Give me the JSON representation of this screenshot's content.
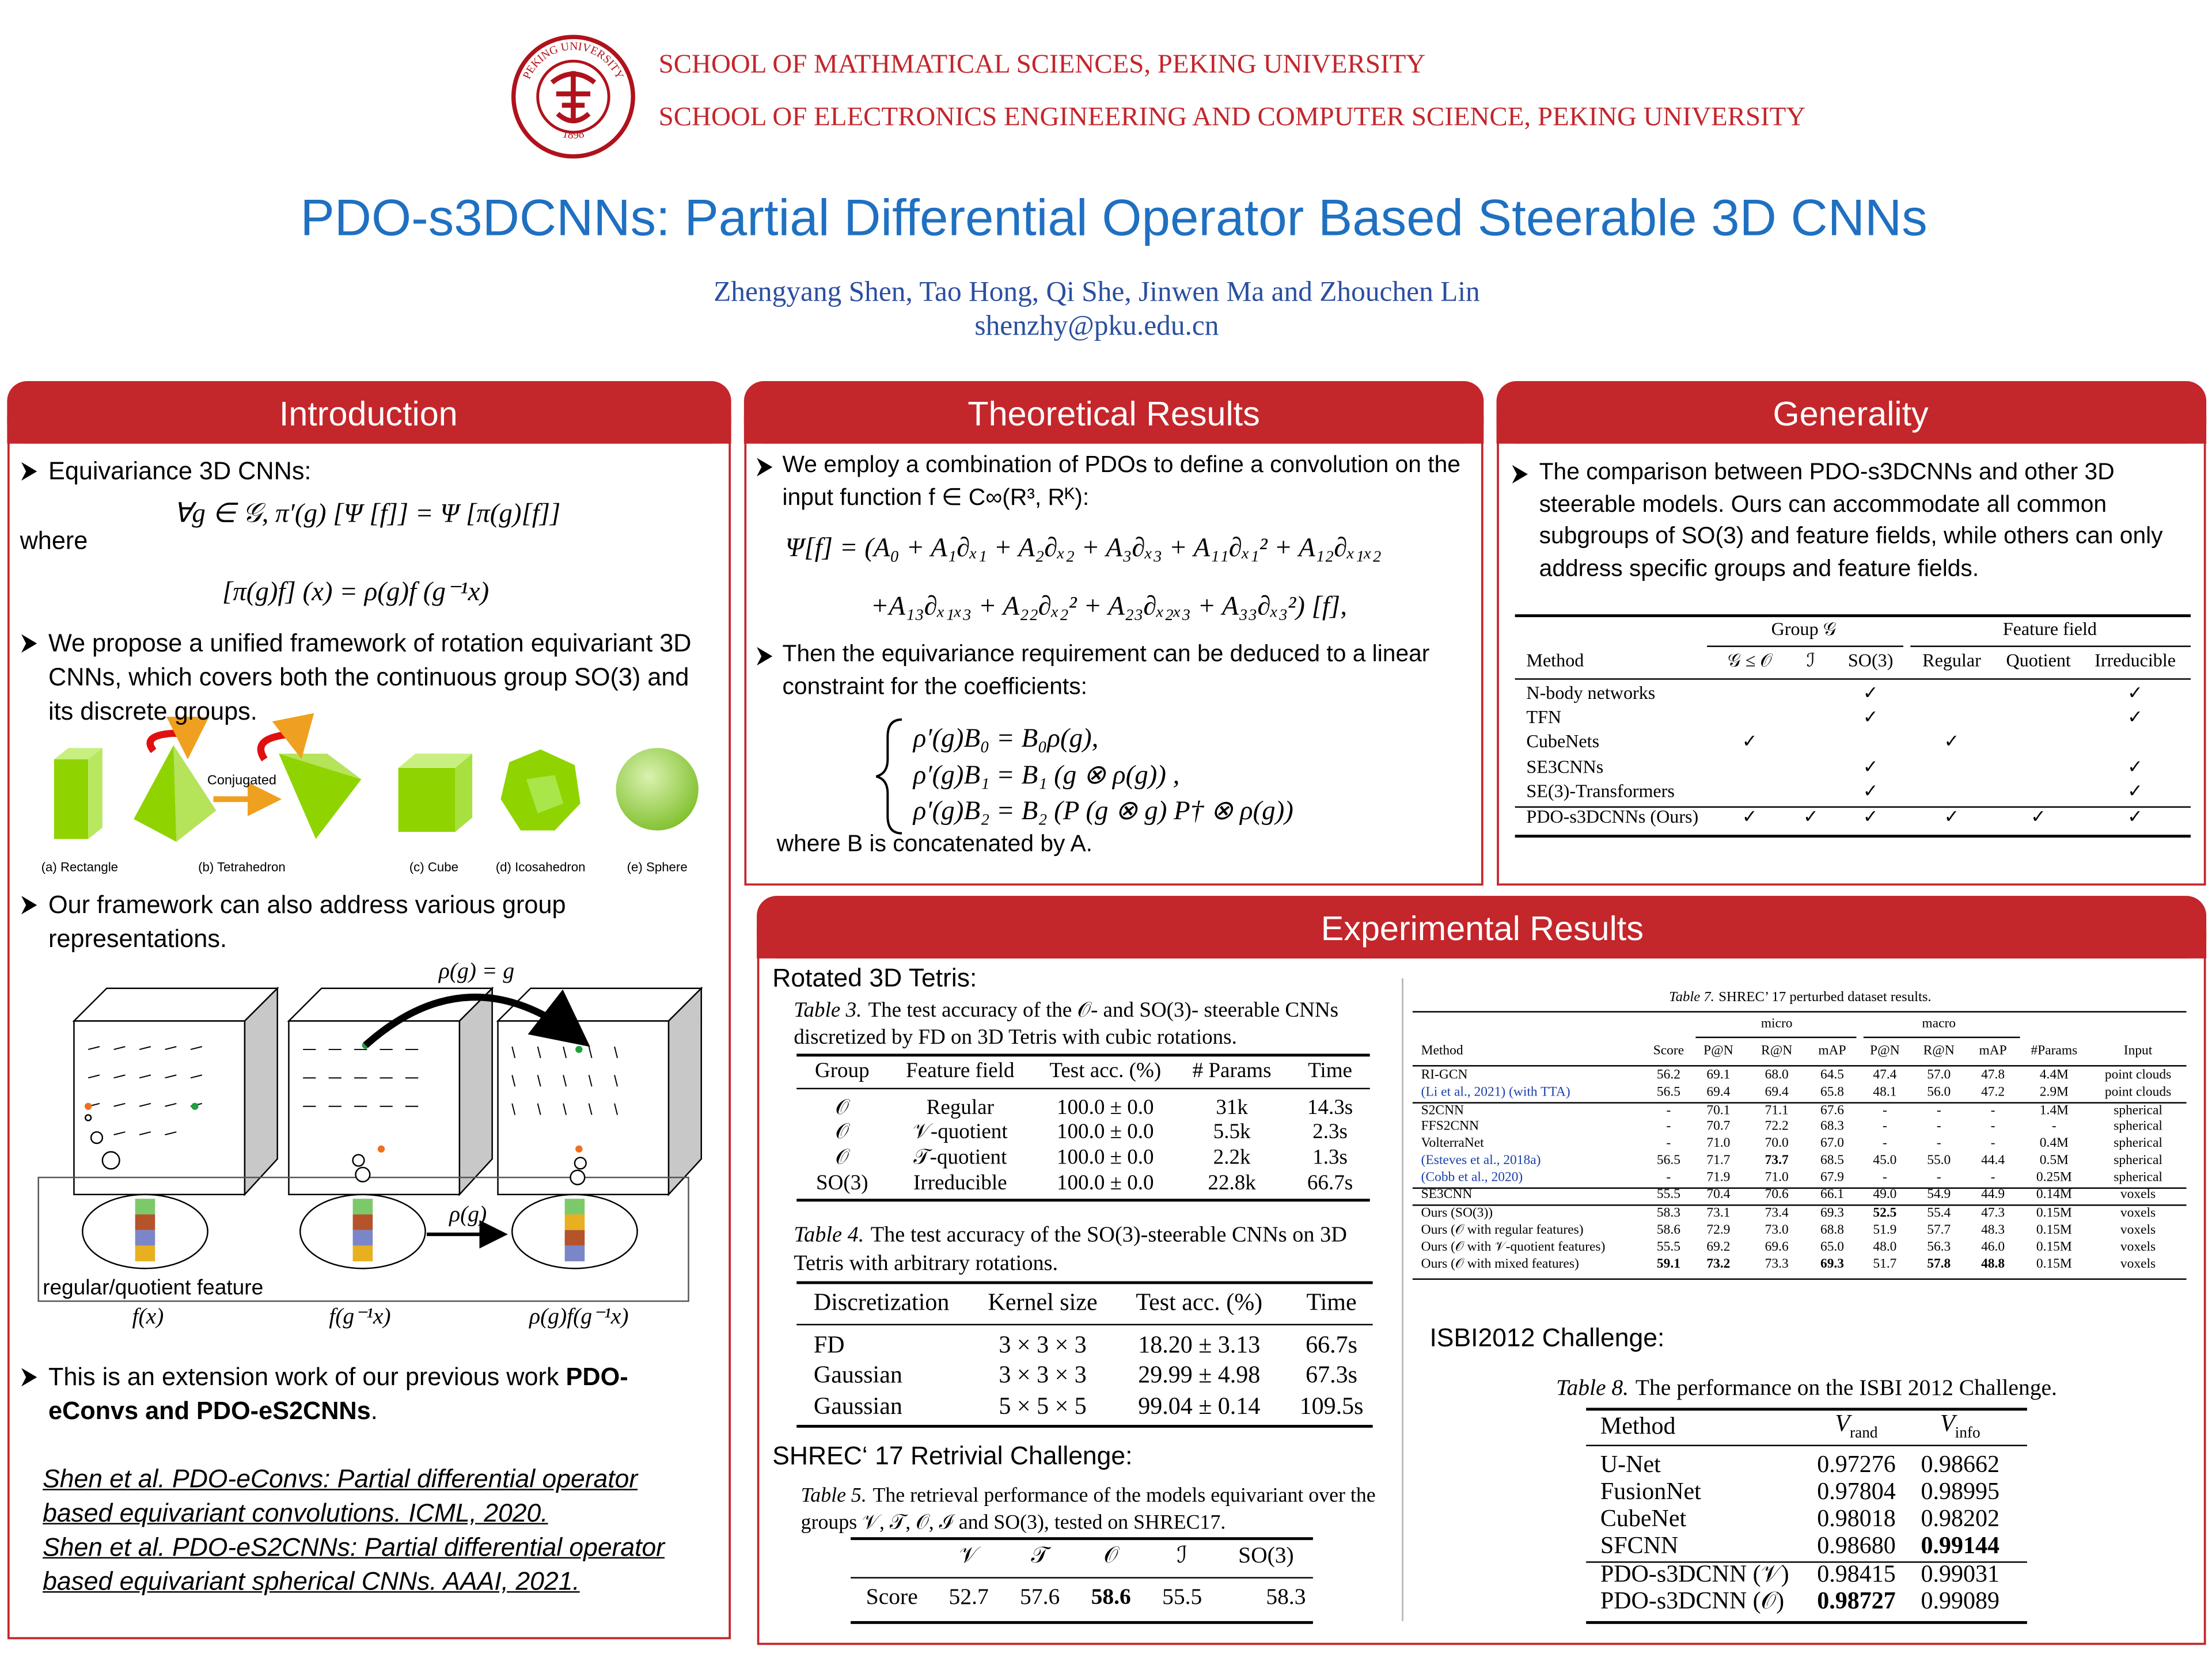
{
  "header": {
    "logo_ring": "PEKING UNIVERSITY",
    "logo_year": "1898",
    "school_1": "SCHOOL OF MATHMATICAL SCIENCES, PEKING UNIVERSITY",
    "school_2": "SCHOOL OF ELECTRONICS ENGINEERING AND COMPUTER SCIENCE, PEKING UNIVERSITY",
    "title": "PDO-s3DCNNs: Partial Differential Operator Based Steerable 3D CNNs",
    "authors": "Zhengyang Shen, Tao Hong, Qi She, Jinwen Ma and Zhouchen Lin",
    "email": "shenzhy@pku.edu.cn"
  },
  "introduction": {
    "title": "Introduction",
    "bullet_1": "Equivariance 3D CNNs:",
    "formula_1": "∀g ∈ 𝒢,  π′(g) [Ψ [f]] = Ψ [π(g)[f]]",
    "where": "where",
    "formula_2": "[π(g)f] (x) = ρ(g)f (g⁻¹x)",
    "bullet_2": "We propose a unified framework of rotation equivariant 3D CNNs, which covers both the continuous group SO(3) and its discrete groups.",
    "shapes": {
      "conjugated": "Conjugated",
      "labels": [
        "(a) Rectangle",
        "(b) Tetrahedron",
        "(c) Cube",
        "(d) Icosahedron",
        "(e) Sphere"
      ]
    },
    "bullet_3": "Our framework can also address various group representations.",
    "figure": {
      "rho_g_eq": "ρ(g) = g",
      "rho_g": "ρ(g)",
      "feature": "regular/quotient feature",
      "f_labels": [
        "f(x)",
        "f(g⁻¹x)",
        "ρ(g)f(g⁻¹x)"
      ]
    },
    "bullet_4": {
      "text": "This is an extension work of our previous work ",
      "bold": "PDO-eConvs and PDO-eS2CNNs",
      "end": "."
    },
    "references": [
      "Shen et al. PDO-eConvs: Partial differential operator based equivariant convolutions. ICML, 2020.",
      "Shen et al. PDO-eS2CNNs: Partial differential operator based equivariant spherical CNNs. AAAI, 2021."
    ]
  },
  "theory": {
    "title": "Theoretical Results",
    "bullet_1": "We employ a combination of PDOs to define a convolution on the input function f ∈ C∞(R³, Rᴷ):",
    "formula_1": "Ψ[f] = (A₀ + A₁∂ₓ₁ + A₂∂ₓ₂ + A₃∂ₓ₃ + A₁₁∂ₓ₁² + A₁₂∂ₓ₁ₓ₂",
    "formula_2": "+A₁₃∂ₓ₁ₓ₃ + A₂₂∂ₓ₂² + A₂₃∂ₓ₂ₓ₃ + A₃₃∂ₓ₃²) [f],",
    "bullet_2": "Then the equivariance requirement can be deduced to a linear constraint for the coefficients:",
    "system": [
      "ρ′(g)B₀ = B₀ρ(g),",
      "ρ′(g)B₁ = B₁ (g ⊗ ρ(g)) ,",
      "ρ′(g)B₂ = B₂ (P (g ⊗ g) P† ⊗ ρ(g))"
    ],
    "where": "where B is concatenated by A."
  },
  "generality": {
    "title": "Generality",
    "bullet": "The comparison between PDO-s3DCNNs and other 3D steerable models. Ours can accommodate all common subgroups of SO(3) and feature fields, while others can only address specific groups and feature fields.",
    "table": {
      "groups": [
        "Group 𝒢",
        "Feature field"
      ],
      "header": [
        "Method",
        "𝒢 ≤ 𝒪",
        "ℐ",
        "SO(3)",
        "Regular",
        "Quotient",
        "Irreducible"
      ],
      "rows": [
        [
          "N-body networks",
          null,
          null,
          "✓",
          null,
          null,
          "✓"
        ],
        [
          "TFN",
          null,
          null,
          "✓",
          null,
          null,
          "✓"
        ],
        [
          "CubeNets",
          "✓",
          null,
          null,
          "✓",
          null,
          null
        ],
        [
          "SE3CNNs",
          null,
          null,
          "✓",
          null,
          null,
          "✓"
        ],
        [
          "SE(3)-Transformers",
          null,
          null,
          "✓",
          null,
          null,
          "✓"
        ],
        [
          "PDO-s3DCNNs (Ours)",
          "✓",
          "✓",
          "✓",
          "✓",
          "✓",
          "✓"
        ]
      ]
    }
  },
  "experiments": {
    "title": "Experimental Results",
    "tetris": "Rotated 3D Tetris:",
    "table3": {
      "caption_label": "Table 3.",
      "caption": "The test accuracy of the 𝒪- and SO(3)- steerable CNNs discretized by FD on 3D Tetris with cubic rotations.",
      "header": [
        "Group",
        "Feature field",
        "Test acc. (%)",
        "# Params",
        "Time"
      ],
      "rows": [
        [
          "𝒪",
          "Regular",
          "100.0 ± 0.0",
          "31k",
          "14.3s"
        ],
        [
          "𝒪",
          "𝒱-quotient",
          "100.0 ± 0.0",
          "5.5k",
          "2.3s"
        ],
        [
          "𝒪",
          "𝒯-quotient",
          "100.0 ± 0.0",
          "2.2k",
          "1.3s"
        ],
        [
          "SO(3)",
          "Irreducible",
          "100.0 ± 0.0",
          "22.8k",
          "66.7s"
        ]
      ]
    },
    "table4": {
      "caption_label": "Table 4.",
      "caption": "The test accuracy of the SO(3)-steerable CNNs on 3D Tetris with arbitrary rotations.",
      "header": [
        "Discretization",
        "Kernel size",
        "Test acc. (%)",
        "Time"
      ],
      "rows": [
        [
          "FD",
          "3 × 3 × 3",
          "18.20 ± 3.13",
          "66.7s"
        ],
        [
          "Gaussian",
          "3 × 3 × 3",
          "29.99 ± 4.98",
          "67.3s"
        ],
        [
          "Gaussian",
          "5 × 5 × 5",
          "99.04 ± 0.14",
          "109.5s"
        ]
      ]
    },
    "shrec": "SHREC‘ 17 Retrivial Challenge:",
    "table5": {
      "caption_label": "Table 5.",
      "caption": "The retrieval performance of the models equivariant over the groups 𝒱, 𝒯, 𝒪, ℐ and SO(3), tested on SHREC17.",
      "header": [
        "𝒱",
        "𝒯",
        "𝒪",
        "ℐ",
        "SO(3)"
      ],
      "rows": [
        [
          "Score",
          "52.7",
          "57.6",
          "58.6",
          "55.5",
          "58.3"
        ]
      ],
      "bold": [
        [
          0,
          3
        ]
      ]
    },
    "table7": {
      "caption_label": "Table 7.",
      "caption": "SHREC’ 17 perturbed dataset results.",
      "groups": [
        "micro",
        "macro"
      ],
      "header": [
        "Method",
        "Score",
        "P@N",
        "R@N",
        "mAP",
        "P@N",
        "R@N",
        "mAP",
        "#Params",
        "Input"
      ],
      "rows": [
        [
          "RI-GCN",
          "56.2",
          "69.1",
          "68.0",
          "64.5",
          "47.4",
          "57.0",
          "47.8",
          "4.4M",
          "point clouds"
        ],
        [
          "(Li et al., 2021) (with TTA)",
          "56.5",
          "69.4",
          "69.4",
          "65.8",
          "48.1",
          "56.0",
          "47.2",
          "2.9M",
          "point clouds"
        ],
        [
          "S2CNN",
          "-",
          "70.1",
          "71.1",
          "67.6",
          "-",
          "-",
          "-",
          "1.4M",
          "spherical"
        ],
        [
          "FFS2CNN",
          "-",
          "70.7",
          "72.2",
          "68.3",
          "-",
          "-",
          "-",
          "-",
          "spherical"
        ],
        [
          "VolterraNet",
          "-",
          "71.0",
          "70.0",
          "67.0",
          "-",
          "-",
          "-",
          "0.4M",
          "spherical"
        ],
        [
          "(Esteves et al., 2018a)",
          "56.5",
          "71.7",
          "73.7",
          "68.5",
          "45.0",
          "55.0",
          "44.4",
          "0.5M",
          "spherical"
        ],
        [
          "(Cobb et al., 2020)",
          "-",
          "71.9",
          "71.0",
          "67.9",
          "-",
          "-",
          "-",
          "0.25M",
          "spherical"
        ],
        [
          "SE3CNN",
          "55.5",
          "70.4",
          "70.6",
          "66.1",
          "49.0",
          "54.9",
          "44.9",
          "0.14M",
          "voxels"
        ],
        [
          "Ours (SO(3))",
          "58.3",
          "73.1",
          "73.4",
          "69.3",
          "52.5",
          "55.4",
          "47.3",
          "0.15M",
          "voxels"
        ],
        [
          "Ours (𝒪 with regular features)",
          "58.6",
          "72.9",
          "73.0",
          "68.8",
          "51.9",
          "57.7",
          "48.3",
          "0.15M",
          "voxels"
        ],
        [
          "Ours (𝒪 with 𝒱-quotient features)",
          "55.5",
          "69.2",
          "69.6",
          "65.0",
          "48.0",
          "56.3",
          "46.0",
          "0.15M",
          "voxels"
        ],
        [
          "Ours (𝒪 with mixed features)",
          "59.1",
          "73.2",
          "73.3",
          "69.3",
          "51.7",
          "57.8",
          "48.8",
          "0.15M",
          "voxels"
        ]
      ],
      "bold": [
        [
          5,
          3
        ],
        [
          8,
          5
        ],
        [
          11,
          1
        ],
        [
          11,
          2
        ],
        [
          11,
          4
        ],
        [
          11,
          6
        ],
        [
          11,
          7
        ]
      ],
      "link_cells": [
        [
          1,
          0
        ],
        [
          5,
          0
        ],
        [
          6,
          0
        ]
      ],
      "link_color": "#1a3fa8"
    },
    "isbi": "ISBI2012 Challenge:",
    "table8": {
      "caption_label": "Table 8.",
      "caption": "The performance on the ISBI 2012 Challenge.",
      "header": [
        "Method",
        {
          "main": "V",
          "sub": "rand"
        },
        {
          "main": "V",
          "sub": "info"
        }
      ],
      "rows": [
        [
          "U-Net",
          "0.97276",
          "0.98662"
        ],
        [
          "FusionNet",
          "0.97804",
          "0.98995"
        ],
        [
          "CubeNet",
          "0.98018",
          "0.98202"
        ],
        [
          "SFCNN",
          "0.98680",
          "0.99144"
        ],
        [
          "PDO-s3DCNN (𝒱)",
          "0.98415",
          "0.99031"
        ],
        [
          "PDO-s3DCNN (𝒪)",
          "0.98727",
          "0.99089"
        ]
      ],
      "bold": [
        [
          3,
          2
        ],
        [
          5,
          1
        ]
      ]
    }
  }
}
